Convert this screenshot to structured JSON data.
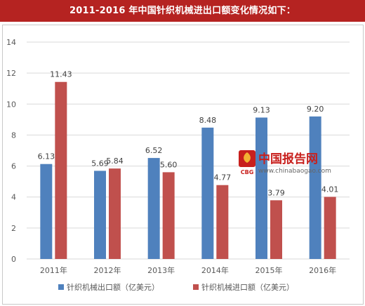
{
  "banner_title": "2011-2016 年中国针织机械进出口额变化情况如下：",
  "watermark": {
    "name": "中国报告网",
    "url": "www.chinabaogao.com",
    "logo_text": "CBG"
  },
  "colors": {
    "banner": "#b52321",
    "export": "#4f81bd",
    "import": "#c0504d",
    "grid": "#d9d9d9"
  },
  "chart_data": {
    "type": "bar",
    "categories": [
      "2011年",
      "2012年",
      "2013年",
      "2014年",
      "2015年",
      "2016年"
    ],
    "series": [
      {
        "name": "针织机械出口额（亿美元）",
        "values": [
          6.13,
          5.69,
          6.52,
          8.48,
          9.13,
          9.2
        ],
        "labels": [
          "6.13",
          "5.69",
          "6.52",
          "8.48",
          "9.13",
          "9.20"
        ]
      },
      {
        "name": "针织机械进口额（亿美元）",
        "values": [
          11.43,
          5.84,
          5.6,
          4.77,
          3.79,
          4.01
        ],
        "labels": [
          "11.43",
          "5.84",
          "5.60",
          "4.77",
          "3.79",
          "4.01"
        ]
      }
    ],
    "yticks": [
      "0",
      "2",
      "4",
      "6",
      "8",
      "10",
      "12",
      "14"
    ],
    "ylim": [
      0,
      14
    ],
    "grid": true,
    "legend_position": "bottom"
  }
}
